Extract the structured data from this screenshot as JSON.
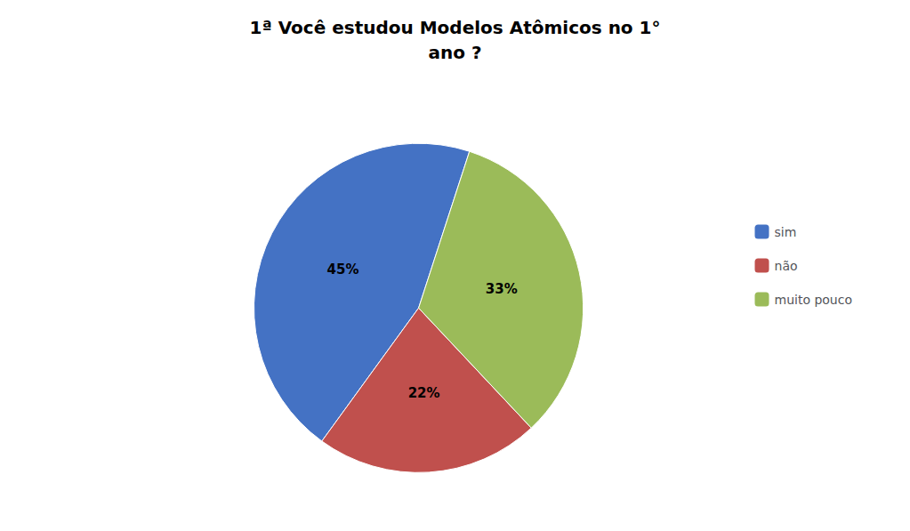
{
  "chart_data": {
    "type": "pie",
    "title": "1ª Você estudou Modelos Atômicos no 1°\nano ?",
    "categories": [
      "sim",
      "não",
      "muito pouco"
    ],
    "values": [
      45,
      22,
      33
    ],
    "value_labels": [
      "45%",
      "22%",
      "33%"
    ],
    "colors": [
      "#4472C4",
      "#C0504D",
      "#9BBB59"
    ],
    "legend": "right",
    "data_labels": true
  }
}
